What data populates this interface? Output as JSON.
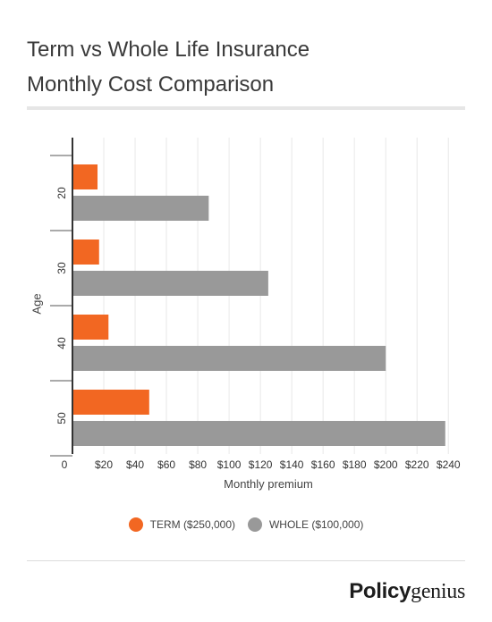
{
  "header": {
    "title_line1": "Term vs Whole Life Insurance",
    "title_line2": "Monthly Cost Comparison"
  },
  "brand": {
    "part1": "Policy",
    "part2": "genius"
  },
  "colors": {
    "term": "#f26722",
    "whole": "#999999",
    "grid": "#e8e8e8",
    "axis": "#333333"
  },
  "chart_data": {
    "type": "bar",
    "orientation": "horizontal",
    "title": "Term vs Whole Life Insurance Monthly Cost Comparison",
    "xlabel": "Monthly premium",
    "ylabel": "Age",
    "categories": [
      "20",
      "30",
      "40",
      "50"
    ],
    "series": [
      {
        "name": "TERM ($250,000)",
        "values": [
          16,
          17,
          23,
          49
        ]
      },
      {
        "name": "WHOLE ($100,000)",
        "values": [
          87,
          125,
          200,
          238
        ]
      }
    ],
    "xlim": [
      0,
      245
    ],
    "xticks": [
      0,
      20,
      40,
      60,
      80,
      100,
      120,
      140,
      160,
      180,
      200,
      220,
      240
    ],
    "xtick_labels": [
      "0",
      "$20",
      "$40",
      "$60",
      "$80",
      "$100",
      "$120",
      "$140",
      "$160",
      "$180",
      "$200",
      "$220",
      "$240"
    ],
    "grid": true,
    "legend_position": "bottom"
  }
}
